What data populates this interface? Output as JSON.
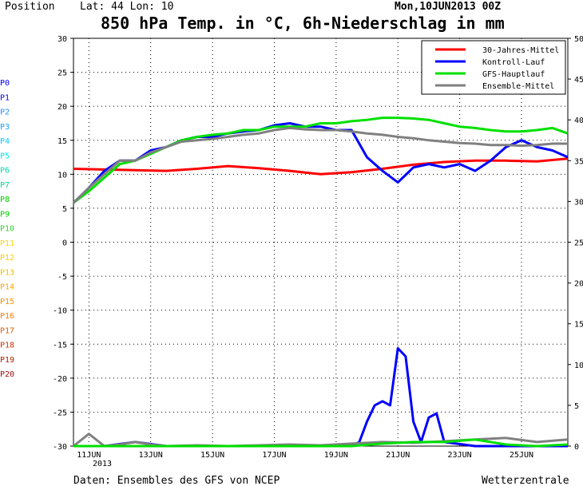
{
  "header": {
    "position": "Position",
    "latlon": "Lat: 44 Lon: 10",
    "run": "Mon,10JUN2013 00Z",
    "title": "850 hPa Temp. in °C, 6h-Niederschlag in mm"
  },
  "footer": {
    "source": "Daten: Ensembles des GFS von NCEP",
    "brand": "Wetterzentrale"
  },
  "members": [
    {
      "label": "P0",
      "color": "#0000ff"
    },
    {
      "label": "P1",
      "color": "#0000ff"
    },
    {
      "label": "P2",
      "color": "#1e90ff"
    },
    {
      "label": "P3",
      "color": "#1ea0f0"
    },
    {
      "label": "P4",
      "color": "#00c8ff"
    },
    {
      "label": "P5",
      "color": "#00e8e8"
    },
    {
      "label": "P6",
      "color": "#00d8b0"
    },
    {
      "label": "P7",
      "color": "#00d890"
    },
    {
      "label": "P8",
      "color": "#00c800"
    },
    {
      "label": "P9",
      "color": "#00d000"
    },
    {
      "label": "P10",
      "color": "#32cd32"
    },
    {
      "label": "P11",
      "color": "#ffd700"
    },
    {
      "label": "P12",
      "color": "#ffc800"
    },
    {
      "label": "P13",
      "color": "#f0c000"
    },
    {
      "label": "P14",
      "color": "#ffa500"
    },
    {
      "label": "P15",
      "color": "#ff9000"
    },
    {
      "label": "P16",
      "color": "#ff7a00"
    },
    {
      "label": "P17",
      "color": "#e05a00"
    },
    {
      "label": "P18",
      "color": "#c83200"
    },
    {
      "label": "P19",
      "color": "#b02000"
    },
    {
      "label": "P20",
      "color": "#a01010"
    }
  ],
  "chart_data": {
    "type": "line",
    "x_labels": [
      "11JUN",
      "13JUN",
      "15JUN",
      "17JUN",
      "19JUN",
      "21JUN",
      "23JUN",
      "25JUN"
    ],
    "x_year": "2013",
    "y_ticks_left": [
      30,
      25,
      20,
      15,
      10,
      5,
      0,
      -5,
      -10,
      -15,
      -20,
      -25,
      -30
    ],
    "y_ticks_right": [
      50,
      45,
      40,
      35,
      30,
      25,
      20,
      15,
      10,
      5,
      0
    ],
    "ylim_temp": [
      -30,
      30
    ],
    "ylim_precip": [
      0,
      50
    ],
    "x_range_days": [
      0,
      16
    ],
    "legend": {
      "position": "top-right",
      "entries": [
        {
          "name": "30-Jahres-Mittel",
          "color": "#ff0000"
        },
        {
          "name": "Kontroll-Lauf",
          "color": "#0000ff"
        },
        {
          "name": "GFS-Hauptlauf",
          "color": "#00e000"
        },
        {
          "name": "Ensemble-Mittel",
          "color": "#808080"
        }
      ]
    },
    "series": [
      {
        "name": "30-Jahres-Mittel",
        "color": "#ff0000",
        "axis": "temp",
        "x": [
          0,
          1,
          2,
          3,
          4,
          5,
          6,
          7,
          8,
          9,
          10,
          11,
          12,
          13,
          14,
          15,
          16
        ],
        "values": [
          10.8,
          10.7,
          10.6,
          10.5,
          10.8,
          11.2,
          10.9,
          10.5,
          10.0,
          10.3,
          10.8,
          11.4,
          11.8,
          12.0,
          12.0,
          11.9,
          12.3
        ]
      },
      {
        "name": "Kontroll-Lauf",
        "color": "#0000ff",
        "axis": "temp",
        "x": [
          0,
          0.5,
          1,
          1.5,
          2,
          2.5,
          3,
          3.5,
          4,
          4.5,
          5,
          5.5,
          6,
          6.5,
          7,
          7.5,
          8,
          8.5,
          9,
          9.5,
          10,
          10.5,
          11,
          11.5,
          12,
          12.5,
          13,
          13.5,
          14,
          14.5,
          15,
          15.5,
          16
        ],
        "values": [
          5.8,
          8.0,
          10.5,
          12.0,
          12.0,
          13.5,
          14.0,
          15.0,
          15.5,
          15.5,
          16.0,
          16.3,
          16.5,
          17.2,
          17.5,
          17.0,
          17.0,
          16.5,
          16.5,
          12.5,
          10.5,
          8.8,
          11.0,
          11.5,
          11.0,
          11.5,
          10.5,
          12.0,
          14.0,
          15.0,
          14.0,
          13.5,
          12.5
        ]
      },
      {
        "name": "GFS-Hauptlauf",
        "color": "#00e000",
        "axis": "temp",
        "x": [
          0,
          0.5,
          1,
          1.5,
          2,
          2.5,
          3,
          3.5,
          4,
          4.5,
          5,
          5.5,
          6,
          6.5,
          7,
          7.5,
          8,
          8.5,
          9,
          9.5,
          10,
          10.5,
          11,
          11.5,
          12,
          12.5,
          13,
          13.5,
          14,
          14.5,
          15,
          15.5,
          16
        ],
        "values": [
          5.8,
          7.5,
          9.5,
          11.5,
          12.0,
          13.0,
          14.0,
          15.0,
          15.5,
          15.8,
          16.0,
          16.5,
          16.5,
          17.0,
          17.0,
          17.0,
          17.5,
          17.5,
          17.8,
          18.0,
          18.3,
          18.3,
          18.2,
          18.0,
          17.5,
          17.0,
          16.8,
          16.5,
          16.3,
          16.3,
          16.5,
          16.8,
          16.0
        ]
      },
      {
        "name": "Ensemble-Mittel",
        "color": "#808080",
        "axis": "temp",
        "x": [
          0,
          0.5,
          1,
          1.5,
          2,
          2.5,
          3,
          3.5,
          4,
          4.5,
          5,
          5.5,
          6,
          6.5,
          7,
          7.5,
          8,
          8.5,
          9,
          9.5,
          10,
          10.5,
          11,
          11.5,
          12,
          12.5,
          13,
          13.5,
          14,
          14.5,
          15,
          15.5,
          16
        ],
        "values": [
          5.8,
          8.0,
          10.0,
          12.0,
          12.0,
          13.2,
          14.0,
          14.8,
          15.0,
          15.2,
          15.5,
          15.8,
          16.0,
          16.5,
          16.8,
          16.6,
          16.5,
          16.5,
          16.3,
          16.0,
          15.8,
          15.5,
          15.3,
          15.0,
          14.8,
          14.6,
          14.5,
          14.3,
          14.3,
          14.2,
          14.3,
          14.5,
          14.5
        ]
      },
      {
        "name": "Kontroll-Lauf",
        "color": "#0000ff",
        "axis": "precip",
        "x": [
          0,
          1,
          2,
          3,
          4,
          5,
          6,
          7,
          8,
          9,
          9.25,
          9.5,
          9.75,
          10,
          10.25,
          10.5,
          10.75,
          11,
          11.25,
          11.5,
          11.75,
          12,
          13,
          14,
          15,
          16
        ],
        "values": [
          0,
          0,
          0.5,
          0,
          0,
          0,
          0,
          0,
          0,
          0,
          0.5,
          3,
          5,
          5.5,
          5,
          12,
          11,
          3,
          0.5,
          3.5,
          4,
          0.5,
          0,
          0,
          0,
          0
        ]
      },
      {
        "name": "Ensemble-Mittel",
        "color": "#808080",
        "axis": "precip",
        "x": [
          0,
          0.5,
          1,
          1.5,
          2,
          2.5,
          3,
          4,
          5,
          6,
          7,
          8,
          9,
          10,
          11,
          12,
          13,
          14,
          15,
          16
        ],
        "values": [
          0,
          1.5,
          0,
          0.2,
          0.5,
          0.2,
          0,
          0.1,
          0,
          0.1,
          0.2,
          0.1,
          0.3,
          0.5,
          0.4,
          0.6,
          0.8,
          1.0,
          0.5,
          0.8
        ]
      },
      {
        "name": "GFS-Hauptlauf",
        "color": "#00e000",
        "axis": "precip",
        "x": [
          0,
          2,
          4,
          6,
          8,
          9,
          10,
          11,
          12,
          13,
          14,
          15,
          16
        ],
        "values": [
          0,
          0,
          0,
          0,
          0,
          0,
          0.3,
          0.5,
          0.5,
          0.8,
          0.2,
          0,
          0.2
        ]
      }
    ]
  }
}
